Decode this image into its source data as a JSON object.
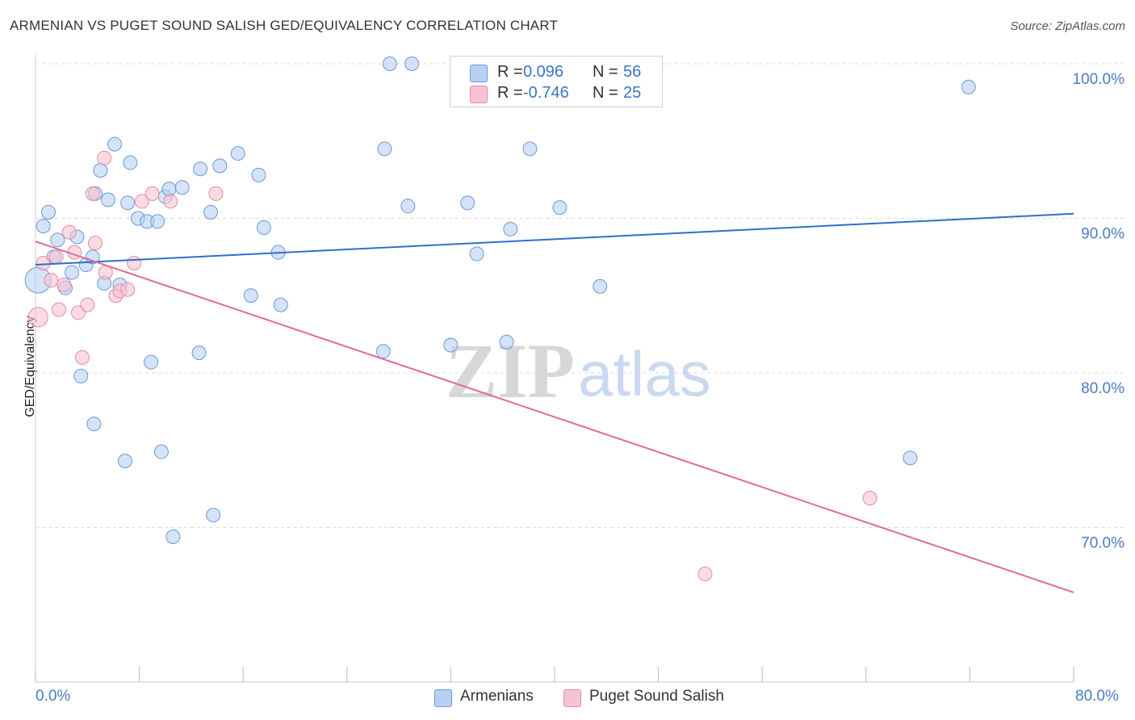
{
  "header": {
    "title": "ARMENIAN VS PUGET SOUND SALISH GED/EQUIVALENCY CORRELATION CHART",
    "source": "Source: ZipAtlas.com"
  },
  "watermark": {
    "zip": "ZIP",
    "atlas": "atlas"
  },
  "legend_top": {
    "rows": [
      {
        "r_label": "R =",
        "r_value": "0.096",
        "n_label": "N =",
        "n_value": "56"
      },
      {
        "r_label": "R =",
        "r_value": "-0.746",
        "n_label": "N =",
        "n_value": "25"
      }
    ]
  },
  "legend_bottom": {
    "items": [
      "Armenians",
      "Puget Sound Salish"
    ]
  },
  "axis": {
    "x_min_label": "0.0%",
    "x_max_label": "80.0%",
    "ylabel": "GED/Equivalency",
    "y_ticks": [
      {
        "value": 100,
        "label": "100.0%"
      },
      {
        "value": 90,
        "label": "90.0%"
      },
      {
        "value": 80,
        "label": "80.0%"
      },
      {
        "value": 70,
        "label": "70.0%"
      }
    ]
  },
  "colors": {
    "blue_fill": "#b8d0f2",
    "blue_stroke": "#6a9ad8",
    "blue_line": "#2f6fc7",
    "pink_fill": "#f7c3d2",
    "pink_stroke": "#e58aa6",
    "pink_line": "#e26a92",
    "tick_label": "#4a7cc6",
    "grid": "#dcdcdc"
  },
  "chart_data": {
    "type": "scatter",
    "title": "ARMENIAN VS PUGET SOUND SALISH GED/EQUIVALENCY CORRELATION CHART",
    "xlabel": "",
    "ylabel": "GED/Equivalency",
    "xlim": [
      0,
      80
    ],
    "ylim": [
      60,
      102
    ],
    "grid": true,
    "legend": "bottom",
    "series": [
      {
        "name": "Armenians",
        "r": 0.096,
        "n": 56,
        "trend": {
          "x": [
            0,
            80
          ],
          "y": [
            87.0,
            90.3
          ]
        },
        "points": [
          [
            0.2,
            86.0
          ],
          [
            0.6,
            89.5
          ],
          [
            1.0,
            90.4
          ],
          [
            1.4,
            87.5
          ],
          [
            1.7,
            88.6
          ],
          [
            2.3,
            85.5
          ],
          [
            2.8,
            86.5
          ],
          [
            3.2,
            88.8
          ],
          [
            3.5,
            79.8
          ],
          [
            4.5,
            76.7
          ],
          [
            3.9,
            87.0
          ],
          [
            4.4,
            87.5
          ],
          [
            4.6,
            91.6
          ],
          [
            5.0,
            93.1
          ],
          [
            5.3,
            85.8
          ],
          [
            5.6,
            91.2
          ],
          [
            6.1,
            94.8
          ],
          [
            6.5,
            85.7
          ],
          [
            6.9,
            74.3
          ],
          [
            7.1,
            91.0
          ],
          [
            7.3,
            93.6
          ],
          [
            7.9,
            90.0
          ],
          [
            8.6,
            89.8
          ],
          [
            8.9,
            80.7
          ],
          [
            9.4,
            89.8
          ],
          [
            9.7,
            74.9
          ],
          [
            10.0,
            91.4
          ],
          [
            10.3,
            91.9
          ],
          [
            10.6,
            69.4
          ],
          [
            11.3,
            92.0
          ],
          [
            12.6,
            81.3
          ],
          [
            12.7,
            93.2
          ],
          [
            13.5,
            90.4
          ],
          [
            13.7,
            70.8
          ],
          [
            14.2,
            93.4
          ],
          [
            15.6,
            94.2
          ],
          [
            16.6,
            85.0
          ],
          [
            17.2,
            92.8
          ],
          [
            17.6,
            89.4
          ],
          [
            18.7,
            87.8
          ],
          [
            18.9,
            84.4
          ],
          [
            26.8,
            81.4
          ],
          [
            26.9,
            94.5
          ],
          [
            27.3,
            100.0
          ],
          [
            28.7,
            90.8
          ],
          [
            29.0,
            100.0
          ],
          [
            32.0,
            81.8
          ],
          [
            33.3,
            91.0
          ],
          [
            34.0,
            87.7
          ],
          [
            36.3,
            82.0
          ],
          [
            36.6,
            89.3
          ],
          [
            38.1,
            94.5
          ],
          [
            40.4,
            90.7
          ],
          [
            43.5,
            85.6
          ],
          [
            67.4,
            74.5
          ],
          [
            71.9,
            98.5
          ]
        ]
      },
      {
        "name": "Puget Sound Salish",
        "r": -0.746,
        "n": 25,
        "trend": {
          "x": [
            0,
            80
          ],
          "y": [
            88.5,
            65.8
          ]
        },
        "points": [
          [
            0.2,
            83.6
          ],
          [
            0.6,
            87.1
          ],
          [
            1.2,
            86.0
          ],
          [
            1.6,
            87.5
          ],
          [
            1.8,
            84.1
          ],
          [
            2.2,
            85.7
          ],
          [
            2.6,
            89.1
          ],
          [
            3.0,
            87.8
          ],
          [
            3.3,
            83.9
          ],
          [
            3.6,
            81.0
          ],
          [
            4.0,
            84.4
          ],
          [
            4.4,
            91.6
          ],
          [
            4.6,
            88.4
          ],
          [
            5.3,
            93.9
          ],
          [
            5.4,
            86.5
          ],
          [
            6.2,
            85.0
          ],
          [
            6.5,
            85.3
          ],
          [
            7.1,
            85.4
          ],
          [
            7.6,
            87.1
          ],
          [
            8.2,
            91.1
          ],
          [
            9.0,
            91.6
          ],
          [
            10.4,
            91.1
          ],
          [
            13.9,
            91.6
          ],
          [
            51.6,
            67.0
          ],
          [
            64.3,
            71.9
          ]
        ]
      }
    ]
  }
}
